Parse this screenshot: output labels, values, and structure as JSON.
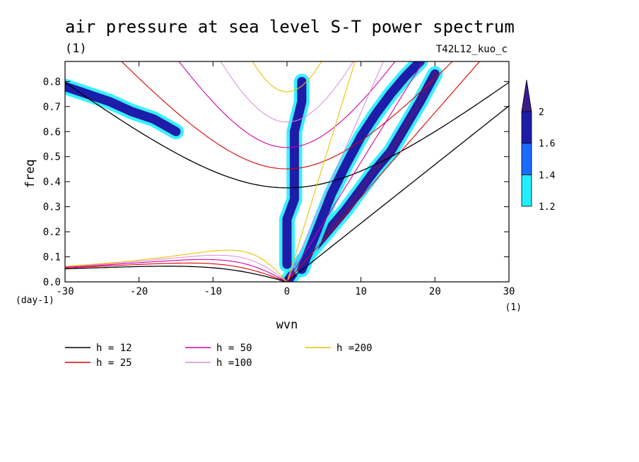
{
  "chart_data": {
    "type": "heatmap",
    "title": "air pressure at sea level S-T power spectrum",
    "units_label": "(1)",
    "run_label": "T42L12_kuo_c",
    "xlabel": "wvn",
    "ylabel": "freq",
    "x_unit_label": "(1)",
    "y_unit_label": "(day-1)",
    "xlim": [
      -30,
      30
    ],
    "ylim": [
      0,
      0.88
    ],
    "x_ticks": [
      -30,
      -20,
      -10,
      0,
      10,
      20,
      30
    ],
    "y_ticks": [
      0.0,
      0.1,
      0.2,
      0.3,
      0.4,
      0.5,
      0.6,
      0.7,
      0.8
    ],
    "colorbar": {
      "levels": [
        1.2,
        1.4,
        1.6,
        2
      ],
      "colors": [
        "#22eeff",
        "#1a6cff",
        "#1d1daa",
        "#3a1b8e"
      ],
      "tick_labels": [
        "1.2",
        "1.4",
        "1.6",
        "2"
      ]
    },
    "dispersion_curves": [
      {
        "name": "h = 12",
        "h": 12,
        "color": "#000000",
        "width": 1.3
      },
      {
        "name": "h = 25",
        "h": 25,
        "color": "#dd0000",
        "width": 1.1
      },
      {
        "name": "h = 50",
        "h": 50,
        "color": "#cc00aa",
        "width": 1.1
      },
      {
        "name": "h =100",
        "h": 100,
        "color": "#dd88dd",
        "width": 1.0
      },
      {
        "name": "h =200",
        "h": 200,
        "color": "#eec000",
        "width": 1.1
      }
    ],
    "shaded_regions": [
      {
        "kind": "kelvin_band",
        "k": [
          0,
          2,
          4,
          6,
          8,
          10,
          12,
          14,
          16,
          18,
          20
        ],
        "freq": [
          0.0,
          0.08,
          0.15,
          0.22,
          0.29,
          0.37,
          0.45,
          0.52,
          0.62,
          0.72,
          0.83
        ],
        "level": 2
      },
      {
        "kind": "kelvin_band",
        "k": [
          2,
          4,
          6,
          8,
          10,
          12,
          14,
          16,
          18
        ],
        "freq": [
          0.05,
          0.2,
          0.35,
          0.47,
          0.58,
          0.67,
          0.75,
          0.82,
          0.88
        ],
        "level": 1.6
      },
      {
        "kind": "mrg_band",
        "k": [
          -30,
          -27,
          -24,
          -21,
          -18,
          -15
        ],
        "freq": [
          0.78,
          0.75,
          0.72,
          0.68,
          0.65,
          0.6
        ],
        "level": 1.6
      },
      {
        "kind": "vertical_ridge",
        "k": [
          0,
          0,
          1,
          1,
          1,
          2,
          2
        ],
        "freq": [
          0.07,
          0.25,
          0.33,
          0.45,
          0.6,
          0.72,
          0.8
        ],
        "level": 1.6
      }
    ]
  }
}
